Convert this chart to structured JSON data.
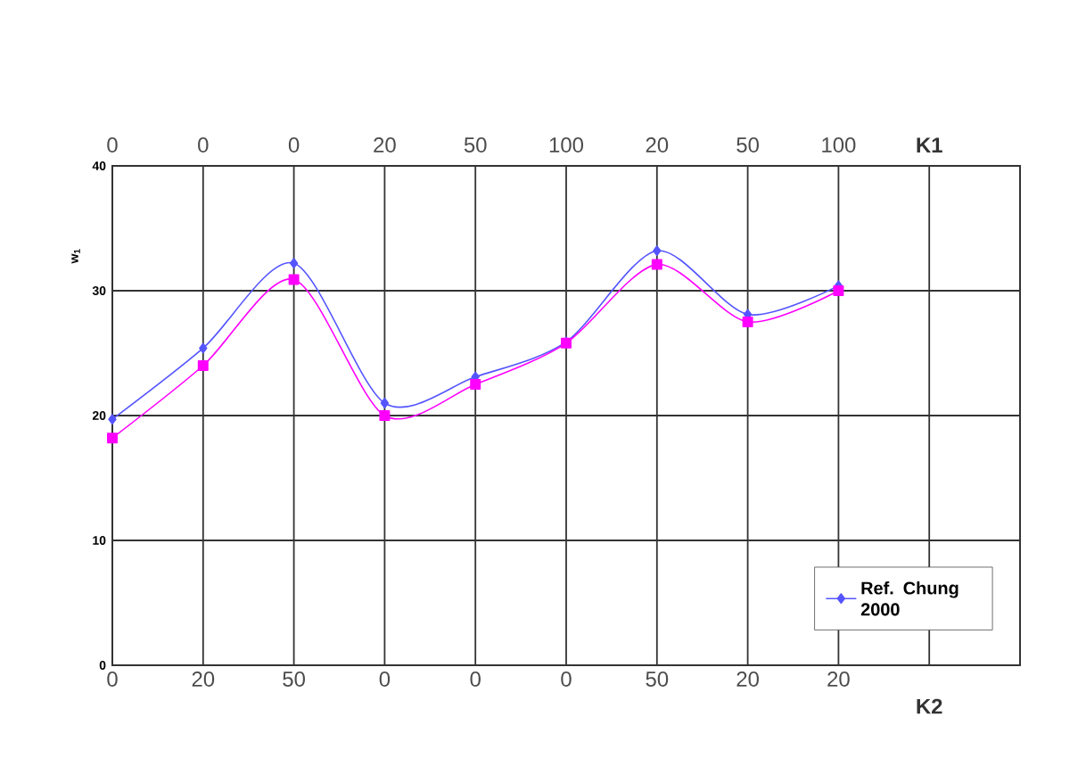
{
  "chart_data": {
    "type": "line",
    "ylabel": "w$_{1}$",
    "xlabel": "K2",
    "x2label": "K1",
    "categories": [
      "0",
      "20",
      "50",
      "0",
      "0",
      "0",
      "50",
      "20",
      "20",
      null
    ],
    "annotations": [
      "0",
      "0",
      "0",
      "20",
      "50",
      "100",
      "20",
      "50",
      "100"
    ],
    "ylim": [
      0,
      40
    ],
    "yticks": [
      0,
      10,
      20,
      30,
      40
    ],
    "series": [
      {
        "name": "Ref. Chung 2000",
        "color": "#5555ff",
        "marker": "diamond",
        "values": [
          19.7,
          25.4,
          32.2,
          21.0,
          23.1,
          25.9,
          33.2,
          28.1,
          30.4,
          null
        ]
      },
      {
        "color": "#ff00ff",
        "marker": "square",
        "values": [
          18.2,
          24.0,
          30.9,
          20.0,
          22.5,
          25.8,
          32.1,
          27.5,
          30.0,
          null
        ]
      }
    ],
    "grid": true,
    "legend": "bottom right"
  }
}
